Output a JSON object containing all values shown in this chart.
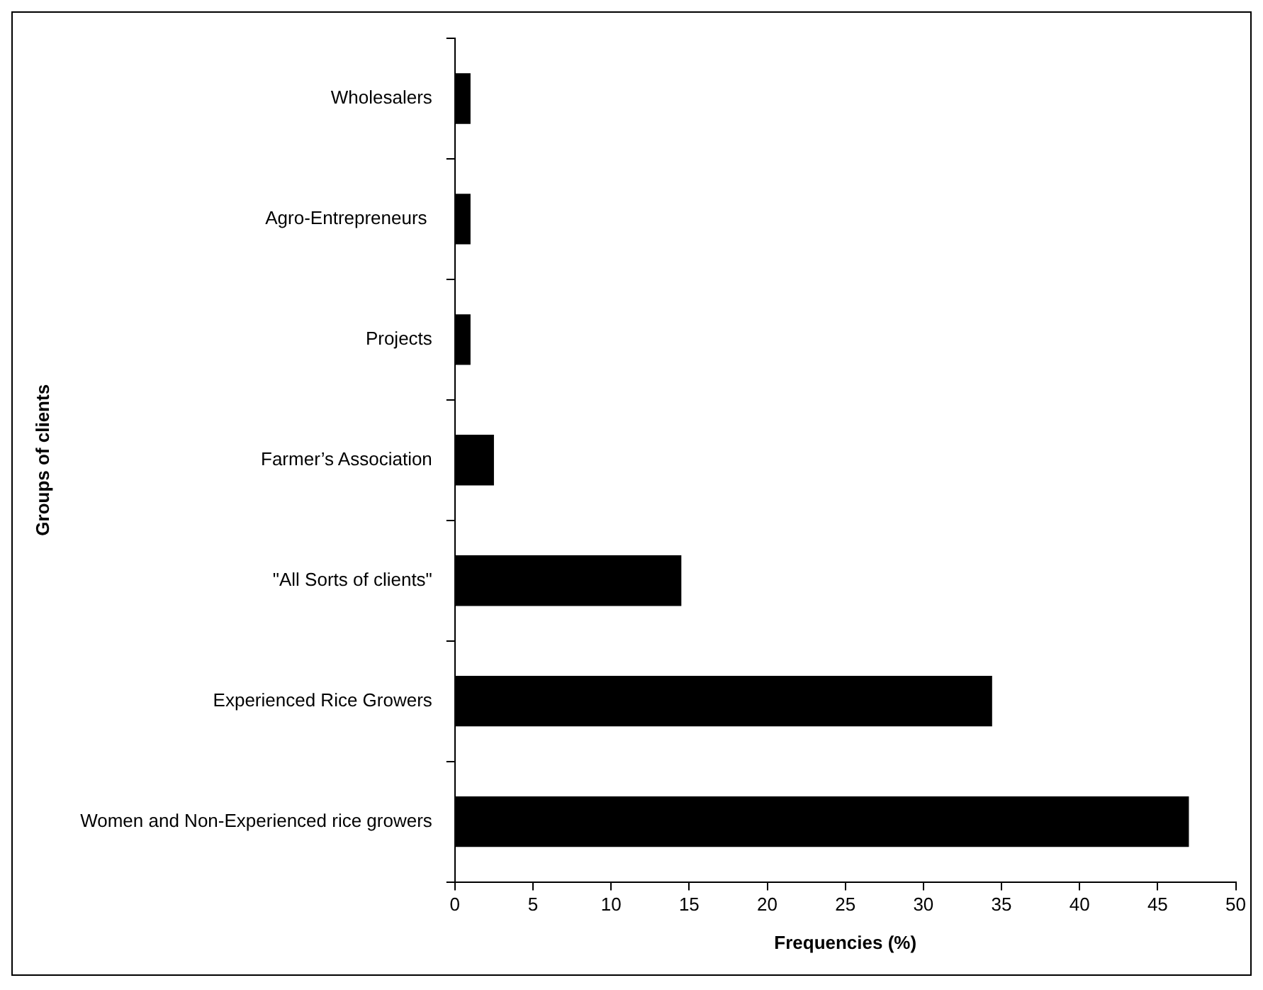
{
  "chart_data": {
    "type": "bar",
    "orientation": "horizontal",
    "xlabel": "Frequencies (%)",
    "ylabel": "Groups of clients",
    "categories": [
      "Wholesalers",
      "Agro-Entrepreneurs ",
      "Projects",
      "Farmer’s Association",
      "\"All Sorts of clients\"",
      "Experienced Rice Growers",
      "Women and Non-Experienced rice growers"
    ],
    "values": [
      1,
      1,
      1,
      2.5,
      14.5,
      34.4,
      47
    ],
    "color": "#000000",
    "xlim": [
      0,
      50
    ],
    "xticks": [
      0,
      5,
      10,
      15,
      20,
      25,
      30,
      35,
      40,
      45,
      50
    ]
  }
}
